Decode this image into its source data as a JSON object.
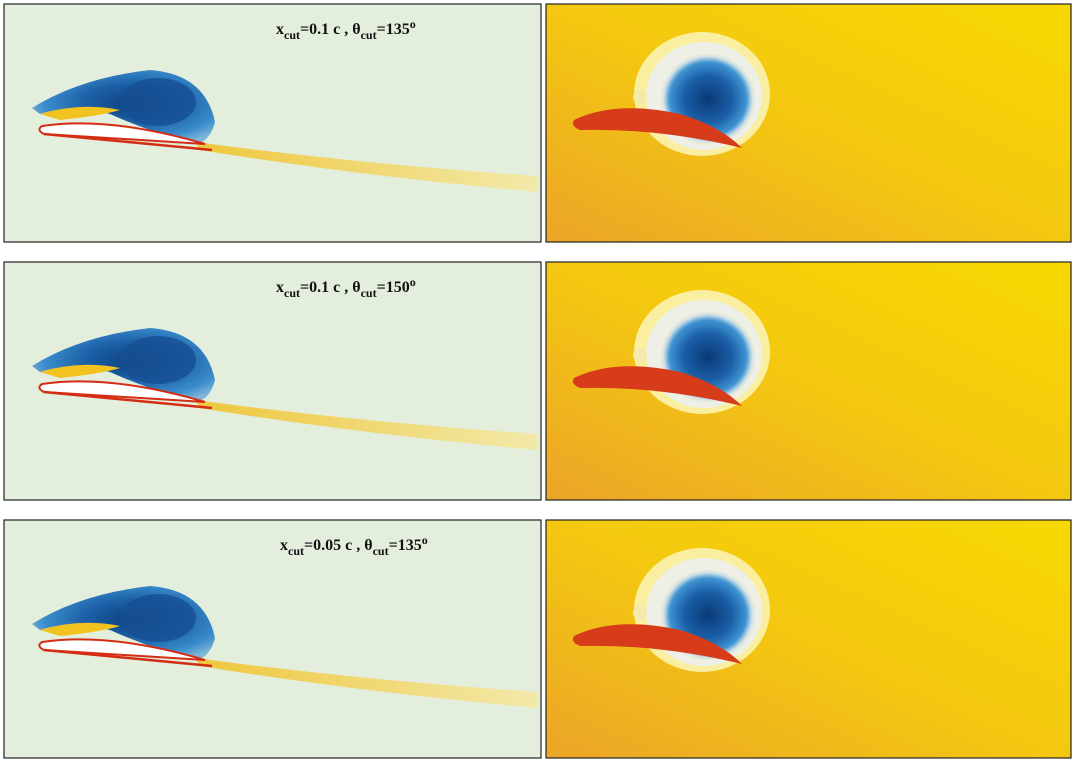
{
  "panels": [
    {
      "label": [
        "x",
        "cut",
        "=0.1 c , θ",
        "cut",
        "=135",
        "o"
      ]
    },
    {
      "label": [
        "x",
        "cut",
        "=0.1 c , θ",
        "cut",
        "=150",
        "o"
      ]
    },
    {
      "label": [
        "x",
        "cut",
        "=0.05 c , θ",
        "cut",
        "=135",
        "o"
      ]
    }
  ]
}
